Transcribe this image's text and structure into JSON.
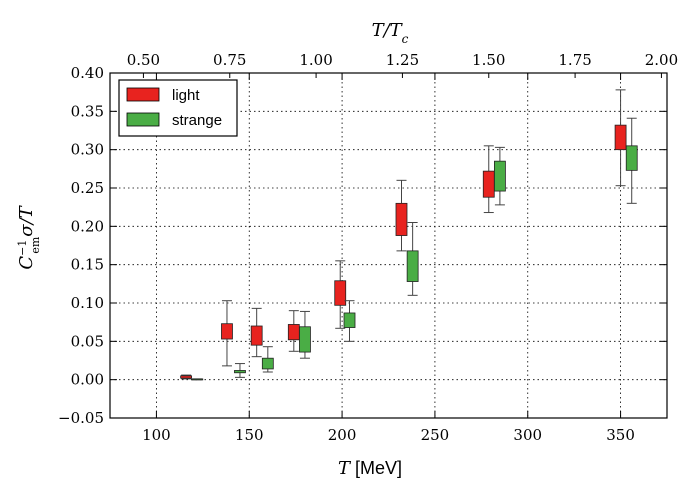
{
  "chart_data": {
    "type": "box",
    "xlabel": "T [MeV]",
    "xlabel_italic": "T",
    "xlabel_rest": " [MeV]",
    "top_xlabel": "T/T_c",
    "ylabel": "C_em^-1 σ/T",
    "xlim": [
      75,
      375
    ],
    "ylim": [
      -0.05,
      0.4
    ],
    "x_ticks": [
      100,
      150,
      200,
      250,
      300,
      350
    ],
    "x_tick_labels": [
      "100",
      "150",
      "200",
      "250",
      "300",
      "350"
    ],
    "y_ticks": [
      -0.05,
      0.0,
      0.05,
      0.1,
      0.15,
      0.2,
      0.25,
      0.3,
      0.35,
      0.4
    ],
    "y_tick_labels": [
      "−0.05",
      "0.00",
      "0.05",
      "0.10",
      "0.15",
      "0.20",
      "0.25",
      "0.30",
      "0.35",
      "0.40"
    ],
    "top_ticks": [
      0.5,
      0.75,
      1.0,
      1.25,
      1.5,
      1.75,
      2.0
    ],
    "top_tick_labels": [
      "0.50",
      "0.75",
      "1.00",
      "1.25",
      "1.50",
      "1.75",
      "2.00"
    ],
    "Tc_MeV": 186,
    "grid": true,
    "legend_position": "top-left",
    "series": [
      {
        "name": "light",
        "color": "#e8231f",
        "boxes": [
          {
            "T": 116,
            "whisker_low": 0.001,
            "q1": 0.002,
            "q3": 0.005,
            "whisker_high": 0.006
          },
          {
            "T": 138,
            "whisker_low": 0.018,
            "q1": 0.053,
            "q3": 0.073,
            "whisker_high": 0.103
          },
          {
            "T": 154,
            "whisker_low": 0.03,
            "q1": 0.045,
            "q3": 0.07,
            "whisker_high": 0.093
          },
          {
            "T": 174,
            "whisker_low": 0.037,
            "q1": 0.052,
            "q3": 0.072,
            "whisker_high": 0.09
          },
          {
            "T": 199,
            "whisker_low": 0.067,
            "q1": 0.097,
            "q3": 0.129,
            "whisker_high": 0.155
          },
          {
            "T": 232,
            "whisker_low": 0.168,
            "q1": 0.188,
            "q3": 0.23,
            "whisker_high": 0.26
          },
          {
            "T": 279,
            "whisker_low": 0.218,
            "q1": 0.238,
            "q3": 0.272,
            "whisker_high": 0.305
          },
          {
            "T": 350,
            "whisker_low": 0.253,
            "q1": 0.3,
            "q3": 0.332,
            "whisker_high": 0.378
          }
        ]
      },
      {
        "name": "strange",
        "color": "#4aad45",
        "boxes": [
          {
            "T": 122,
            "whisker_low": 0.0,
            "q1": 0.0,
            "q3": 0.001,
            "whisker_high": 0.001
          },
          {
            "T": 145,
            "whisker_low": 0.003,
            "q1": 0.009,
            "q3": 0.012,
            "whisker_high": 0.021
          },
          {
            "T": 160,
            "whisker_low": 0.01,
            "q1": 0.014,
            "q3": 0.028,
            "whisker_high": 0.043
          },
          {
            "T": 180,
            "whisker_low": 0.028,
            "q1": 0.036,
            "q3": 0.069,
            "whisker_high": 0.089
          },
          {
            "T": 204,
            "whisker_low": 0.05,
            "q1": 0.068,
            "q3": 0.087,
            "whisker_high": 0.103
          },
          {
            "T": 238,
            "whisker_low": 0.11,
            "q1": 0.128,
            "q3": 0.168,
            "whisker_high": 0.205
          },
          {
            "T": 285,
            "whisker_low": 0.228,
            "q1": 0.246,
            "q3": 0.285,
            "whisker_high": 0.303
          },
          {
            "T": 356,
            "whisker_low": 0.23,
            "q1": 0.273,
            "q3": 0.305,
            "whisker_high": 0.341
          }
        ]
      }
    ]
  }
}
